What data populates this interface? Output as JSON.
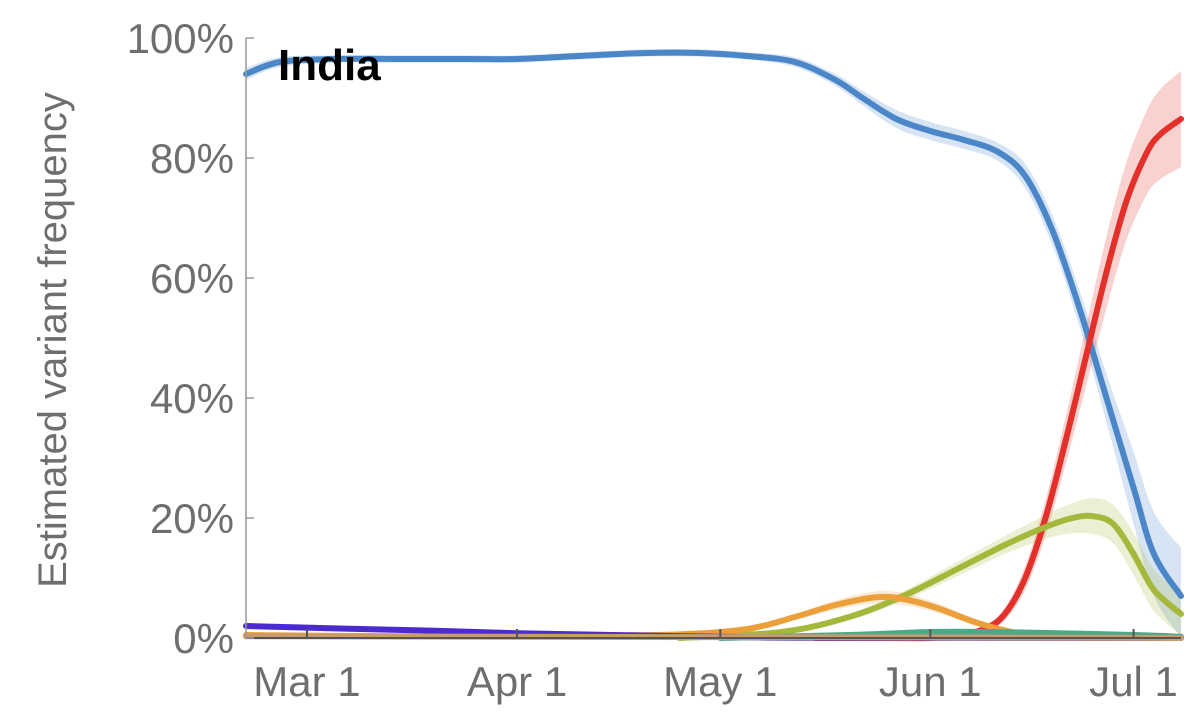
{
  "chart_data": {
    "type": "line",
    "title": "India",
    "xlabel": "",
    "ylabel": "Estimated variant frequency",
    "x_ticks": [
      {
        "date": "2021-03-01",
        "label": "Mar 1"
      },
      {
        "date": "2021-04-01",
        "label": "Apr 1"
      },
      {
        "date": "2021-05-01",
        "label": "May 1"
      },
      {
        "date": "2021-06-01",
        "label": "Jun 1"
      },
      {
        "date": "2021-07-01",
        "label": "Jul 1"
      }
    ],
    "y_ticks": [
      {
        "value": 0,
        "label": "0%"
      },
      {
        "value": 20,
        "label": "20%"
      },
      {
        "value": 40,
        "label": "40%"
      },
      {
        "value": 60,
        "label": "60%"
      },
      {
        "value": 80,
        "label": "80%"
      },
      {
        "value": 100,
        "label": "100%"
      }
    ],
    "xlim": [
      "2021-02-20",
      "2021-07-08"
    ],
    "ylim": [
      0,
      100
    ],
    "grid": false,
    "series": [
      {
        "color": "#4a86c8",
        "band": true,
        "points": [
          [
            "2021-02-20",
            94
          ],
          [
            "2021-02-25",
            96
          ],
          [
            "2021-03-05",
            96.5
          ],
          [
            "2021-03-15",
            96.5
          ],
          [
            "2021-03-25",
            96.5
          ],
          [
            "2021-04-01",
            96.5
          ],
          [
            "2021-04-10",
            97
          ],
          [
            "2021-04-20",
            97.5
          ],
          [
            "2021-04-28",
            97.5
          ],
          [
            "2021-05-05",
            97
          ],
          [
            "2021-05-12",
            96
          ],
          [
            "2021-05-18",
            93
          ],
          [
            "2021-05-22",
            90
          ],
          [
            "2021-05-27",
            86.5
          ],
          [
            "2021-06-01",
            84.5
          ],
          [
            "2021-06-06",
            83
          ],
          [
            "2021-06-11",
            81
          ],
          [
            "2021-06-15",
            77
          ],
          [
            "2021-06-19",
            68
          ],
          [
            "2021-06-23",
            55
          ],
          [
            "2021-06-27",
            40
          ],
          [
            "2021-07-01",
            25
          ],
          [
            "2021-07-04",
            14
          ],
          [
            "2021-07-08",
            7
          ]
        ],
        "band_halfwidth": [
          1,
          0.8,
          0.6,
          0.6,
          0.6,
          0.6,
          0.6,
          0.6,
          0.6,
          0.6,
          0.8,
          1,
          1.2,
          1.5,
          1.5,
          1.5,
          1.5,
          2,
          2.5,
          3,
          4,
          6,
          7,
          8
        ]
      },
      {
        "color": "#e3302a",
        "band": true,
        "points": [
          [
            "2021-05-15",
            0
          ],
          [
            "2021-05-25",
            0
          ],
          [
            "2021-06-01",
            0
          ],
          [
            "2021-06-05",
            0.5
          ],
          [
            "2021-06-09",
            1.5
          ],
          [
            "2021-06-12",
            4
          ],
          [
            "2021-06-15",
            10
          ],
          [
            "2021-06-18",
            20
          ],
          [
            "2021-06-21",
            33
          ],
          [
            "2021-06-24",
            47
          ],
          [
            "2021-06-27",
            61
          ],
          [
            "2021-06-30",
            73
          ],
          [
            "2021-07-03",
            81
          ],
          [
            "2021-07-05",
            84
          ],
          [
            "2021-07-08",
            86.5
          ]
        ],
        "band_halfwidth": [
          0,
          0,
          0,
          0.3,
          0.6,
          1,
          2,
          3,
          4,
          5,
          6,
          6.5,
          7,
          7.5,
          8
        ]
      },
      {
        "color": "#a5b83c",
        "band": true,
        "points": [
          [
            "2021-04-25",
            0
          ],
          [
            "2021-05-10",
            1
          ],
          [
            "2021-05-20",
            3.5
          ],
          [
            "2021-05-28",
            7
          ],
          [
            "2021-06-05",
            11.5
          ],
          [
            "2021-06-12",
            15.5
          ],
          [
            "2021-06-18",
            18.5
          ],
          [
            "2021-06-22",
            20
          ],
          [
            "2021-06-25",
            20.3
          ],
          [
            "2021-06-28",
            19
          ],
          [
            "2021-07-01",
            14
          ],
          [
            "2021-07-04",
            8
          ],
          [
            "2021-07-08",
            4
          ]
        ],
        "band_halfwidth": [
          0,
          0.3,
          0.5,
          0.8,
          1.2,
          1.5,
          2,
          2.5,
          3,
          3.2,
          3.5,
          3.5,
          3.5
        ]
      },
      {
        "color": "#eba03c",
        "band": true,
        "points": [
          [
            "2021-02-20",
            0.5
          ],
          [
            "2021-03-15",
            0.3
          ],
          [
            "2021-04-10",
            0.4
          ],
          [
            "2021-04-25",
            0.6
          ],
          [
            "2021-05-05",
            1.5
          ],
          [
            "2021-05-12",
            3.5
          ],
          [
            "2021-05-18",
            5.5
          ],
          [
            "2021-05-24",
            6.8
          ],
          [
            "2021-05-28",
            6.5
          ],
          [
            "2021-06-02",
            5
          ],
          [
            "2021-06-08",
            2.5
          ],
          [
            "2021-06-14",
            0.8
          ],
          [
            "2021-06-20",
            0.2
          ],
          [
            "2021-07-08",
            0
          ]
        ],
        "band_halfwidth": [
          0.2,
          0.2,
          0.2,
          0.2,
          0.3,
          0.5,
          0.8,
          1,
          1,
          0.8,
          0.5,
          0.3,
          0.2,
          0
        ]
      },
      {
        "color": "#4b2bd0",
        "band": false,
        "points": [
          [
            "2021-02-20",
            2
          ],
          [
            "2021-03-05",
            1.6
          ],
          [
            "2021-03-20",
            1.2
          ],
          [
            "2021-04-01",
            0.8
          ],
          [
            "2021-04-15",
            0.5
          ],
          [
            "2021-05-01",
            0.2
          ],
          [
            "2021-05-15",
            0.05
          ],
          [
            "2021-07-08",
            0
          ]
        ],
        "band_halfwidth": []
      },
      {
        "color": "#4aa98c",
        "band": false,
        "points": [
          [
            "2021-05-01",
            0
          ],
          [
            "2021-05-20",
            0.5
          ],
          [
            "2021-06-01",
            1
          ],
          [
            "2021-06-10",
            1
          ],
          [
            "2021-06-20",
            0.8
          ],
          [
            "2021-07-01",
            0.5
          ],
          [
            "2021-07-08",
            0.2
          ]
        ],
        "band_halfwidth": []
      },
      {
        "color": "#c99a6a",
        "band": false,
        "points": [
          [
            "2021-02-20",
            0.3
          ],
          [
            "2021-04-01",
            0.2
          ],
          [
            "2021-06-01",
            0.1
          ],
          [
            "2021-07-08",
            0
          ]
        ],
        "band_halfwidth": []
      }
    ]
  }
}
